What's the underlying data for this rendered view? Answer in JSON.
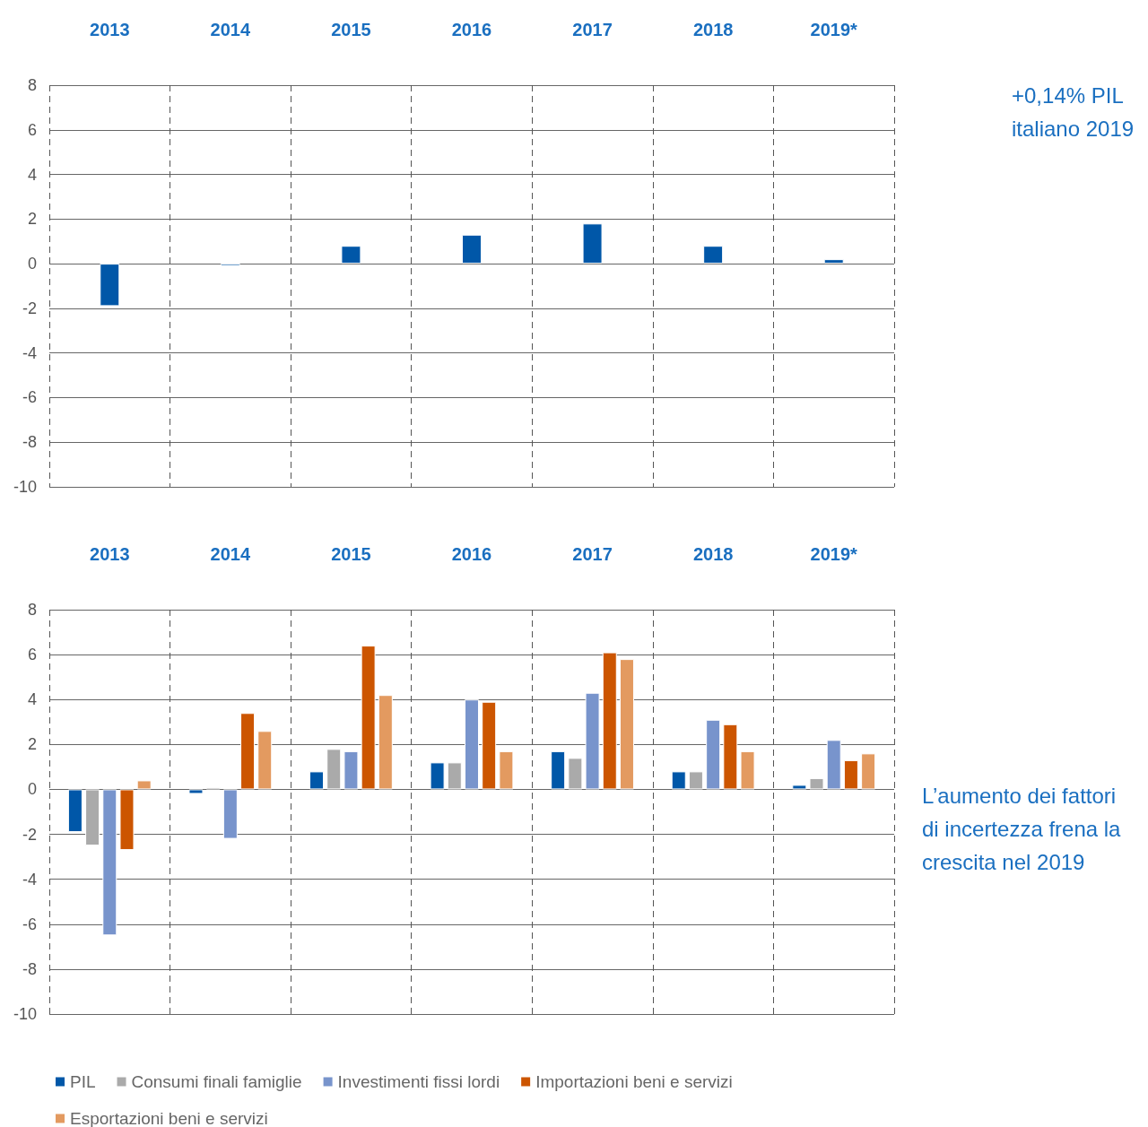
{
  "chart_data": [
    {
      "type": "bar",
      "categories": [
        "2013",
        "2014",
        "2015",
        "2016",
        "2017",
        "2018",
        "2019*"
      ],
      "series": [
        {
          "name": null,
          "color": "#0057a8",
          "values": [
            -1.9,
            -0.1,
            0.8,
            1.3,
            1.8,
            0.8,
            0.2
          ]
        }
      ],
      "ylim": [
        -10,
        8
      ],
      "yticks": [
        -10,
        -8,
        -6,
        -4,
        -2,
        0,
        2,
        4,
        6,
        8
      ],
      "grid": true,
      "annotations": [
        "+0,14% PIL italiano 2019"
      ]
    },
    {
      "type": "bar",
      "categories": [
        "2013",
        "2014",
        "2015",
        "2016",
        "2017",
        "2018",
        "2019*"
      ],
      "series": [
        {
          "name": "PIL",
          "color": "#0057a8",
          "values": [
            -1.9,
            -0.2,
            0.8,
            1.2,
            1.7,
            0.8,
            0.2
          ]
        },
        {
          "name": "Consumi finali famiglie",
          "color": "#aaaaaa",
          "values": [
            -2.5,
            0.1,
            1.8,
            1.2,
            1.4,
            0.8,
            0.5
          ]
        },
        {
          "name": "Investimenti fissi lordi",
          "color": "#7894cc",
          "values": [
            -6.5,
            -2.2,
            1.7,
            4.0,
            4.3,
            3.1,
            2.2
          ]
        },
        {
          "name": "Importazioni beni e servizi",
          "color": "#cc5500",
          "values": [
            -2.7,
            3.4,
            6.4,
            3.9,
            6.1,
            2.9,
            1.3
          ]
        },
        {
          "name": "Esportazioni beni e servizi",
          "color": "#e39a60",
          "values": [
            0.4,
            2.6,
            4.2,
            1.7,
            5.8,
            1.7,
            1.6
          ]
        }
      ],
      "ylim": [
        -10,
        8
      ],
      "yticks": [
        -10,
        -8,
        -6,
        -4,
        -2,
        0,
        2,
        4,
        6,
        8
      ],
      "grid": true,
      "legend": "bottom",
      "annotations": [
        "L’aumento dei fattori di incertezza frena la crescita nel 2019"
      ]
    }
  ]
}
